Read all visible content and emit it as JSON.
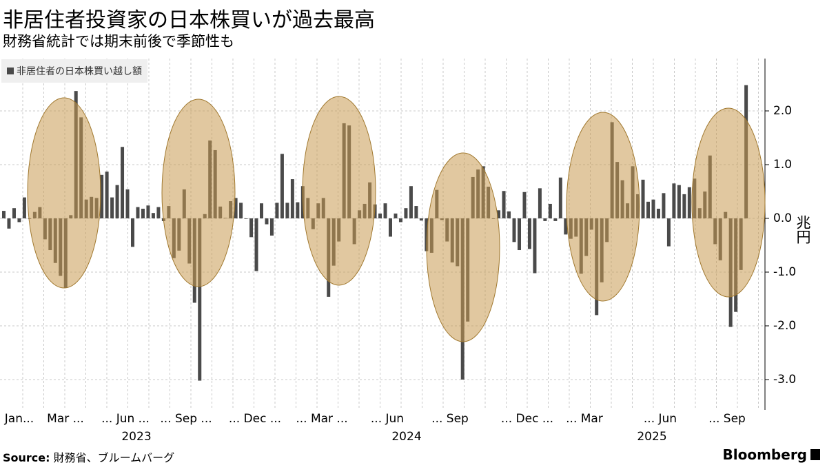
{
  "title": "非居住者投資家の日本株買いが過去最高",
  "subtitle": "財務省統計では期末前後で季節性も",
  "legend": "非居住者の日本株買い越し額",
  "source_label": "Source:",
  "source_text": "財務省、ブルームバーグ",
  "logo": "Bloomberg",
  "colors": {
    "bar": "#4a4a4a",
    "highlight_fill": "#c99a52",
    "highlight_stroke": "#a0782e"
  },
  "chart_data": {
    "type": "bar",
    "ylabel": "兆円",
    "ylim": [
      -3.55,
      2.95
    ],
    "yticks": [
      "2.0",
      "1.0",
      "0.0",
      "-1.0",
      "-2.0",
      "-3.0"
    ],
    "ytick_values": [
      2,
      1,
      0,
      -1,
      -2,
      -3
    ],
    "grid": true,
    "legend_position": "top-left",
    "x_tick_labels": [
      "Jan...",
      "Mar ...",
      "... Jun ...",
      "... Sep ...",
      "... Dec ...",
      "... Mar ...",
      "... Jun",
      "... Sep",
      "... Dec ...",
      "... Mar",
      "... Jun",
      "... Sep"
    ],
    "x_year_labels": [
      "2023",
      "2024",
      "2025"
    ],
    "frequency": "weekly",
    "values": [
      0.14,
      -0.19,
      0.19,
      -0.07,
      0.39,
      -0.01,
      0.12,
      0.21,
      -0.39,
      -0.59,
      -0.83,
      -1.07,
      -1.29,
      0.06,
      2.37,
      1.88,
      0.35,
      0.4,
      0.38,
      0.81,
      0.87,
      0.39,
      0.62,
      1.33,
      0.54,
      -0.53,
      0.21,
      0.18,
      0.24,
      0.1,
      0.21,
      -0.05,
      0.23,
      -0.74,
      -0.6,
      0.54,
      -0.84,
      -1.57,
      -3.02,
      0.08,
      1.45,
      1.27,
      0.22,
      0.01,
      0.32,
      0.38,
      0.29,
      0.0,
      -0.35,
      -0.98,
      0.28,
      -0.11,
      -0.32,
      0.29,
      1.2,
      0.29,
      0.73,
      0.3,
      0.6,
      0.38,
      -0.2,
      0.28,
      0.38,
      -1.46,
      -0.88,
      -0.43,
      1.77,
      1.73,
      -0.48,
      0.15,
      0.27,
      0.67,
      0.26,
      0.09,
      0.28,
      -0.34,
      0.09,
      -0.07,
      0.19,
      0.6,
      0.23,
      -0.04,
      -0.61,
      -0.64,
      0.53,
      -0.03,
      -0.43,
      -0.82,
      -0.89,
      -3.0,
      -1.92,
      0.77,
      0.91,
      0.97,
      0.59,
      0.0,
      0.15,
      0.51,
      0.13,
      -0.44,
      -0.59,
      0.49,
      -0.57,
      -1.02,
      0.56,
      -0.05,
      0.27,
      -0.05,
      0.76,
      -0.3,
      -0.38,
      -0.34,
      -1.03,
      -0.7,
      -0.21,
      -1.8,
      -1.19,
      -0.44,
      1.79,
      1.05,
      0.71,
      0.28,
      0.97,
      0.45,
      0.72,
      0.31,
      0.35,
      0.18,
      0.47,
      -0.52,
      0.65,
      0.62,
      0.45,
      0.58,
      0.74,
      0.19,
      0.5,
      1.17,
      -0.48,
      -0.78,
      0.12,
      -2.02,
      -1.74,
      -0.96,
      2.48
    ]
  }
}
